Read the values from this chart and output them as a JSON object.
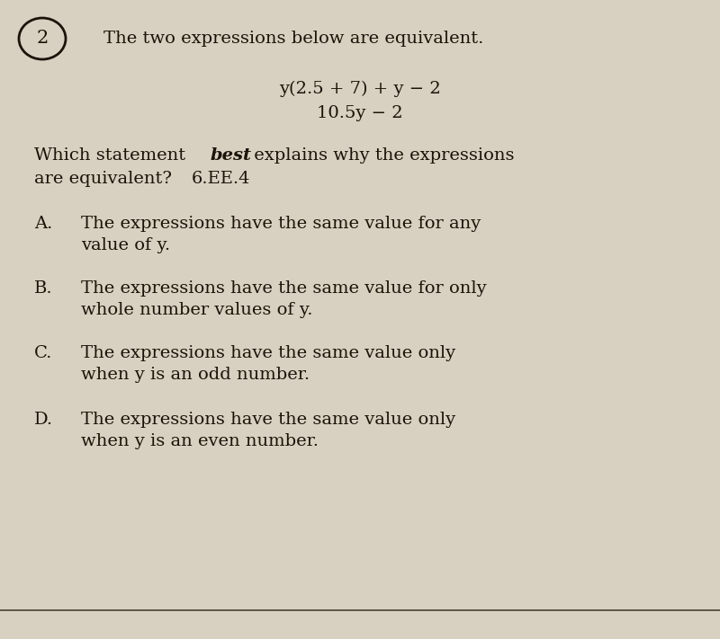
{
  "background_color": "#d8d0c0",
  "question_number": "2",
  "intro_text": "The two expressions below are equivalent.",
  "expression1": "y(2.5 + 7) + y − 2",
  "expression2": "10.5y − 2",
  "question_text_pre": "Which statement ",
  "question_bold": "best",
  "question_text_post": " explains why the expressions",
  "question_text3": "are equivalent?",
  "standard": "6.EE.4",
  "option_A_label": "A.",
  "option_A_line1": "The expressions have the same value for any",
  "option_A_line2": "value of y.",
  "option_B_label": "B.",
  "option_B_line1": "The expressions have the same value for only",
  "option_B_line2": "whole number values of y.",
  "option_C_label": "C.",
  "option_C_line1": "The expressions have the same value only",
  "option_C_line2": "when y is an odd number.",
  "option_D_label": "D.",
  "option_D_line1": "The expressions have the same value only",
  "option_D_line2": "when y is an even number.",
  "font_size_main": 14,
  "text_color": "#1a1408",
  "circle_color": "#1a1408",
  "bottom_line_color": "#4a4030"
}
